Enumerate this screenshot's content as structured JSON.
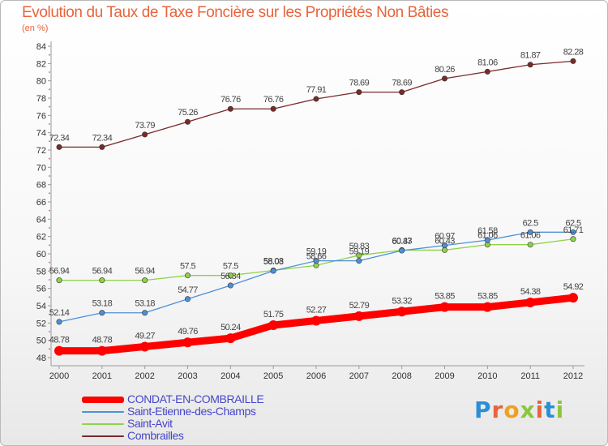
{
  "chart_data": {
    "type": "line",
    "title": "Evolution du Taux de Taxe Foncière sur les Propriétés Non Bâties",
    "subtitle": "(en %)",
    "xlabel": "",
    "ylabel": "",
    "x": [
      "2000",
      "2001",
      "2002",
      "2003",
      "2004",
      "2005",
      "2006",
      "2007",
      "2008",
      "2009",
      "2010",
      "2011",
      "2012"
    ],
    "ylim": [
      48,
      84
    ],
    "yticks": [
      48,
      50,
      52,
      54,
      56,
      58,
      60,
      62,
      64,
      66,
      68,
      70,
      72,
      74,
      76,
      78,
      80,
      82,
      84
    ],
    "grid": false,
    "legend_position": "bottom-left",
    "series": [
      {
        "name": "CONDAT-EN-COMBRAILLE",
        "color": "#ff0000",
        "values": [
          48.78,
          48.78,
          49.27,
          49.76,
          50.24,
          51.75,
          52.27,
          52.79,
          53.32,
          53.85,
          53.85,
          54.38,
          54.92
        ],
        "labels": [
          "48.78",
          "48.78",
          "49.27",
          "49.76",
          "50.24",
          "51.75",
          "52.27",
          "52.79",
          "53.32",
          "53.85",
          "53.85",
          "54.38",
          "54.92"
        ]
      },
      {
        "name": "Saint-Etienne-des-Champs",
        "color": "#4d90d8",
        "values": [
          52.14,
          53.18,
          53.18,
          54.77,
          56.34,
          58.03,
          59.19,
          59.19,
          60.37,
          60.97,
          61.58,
          62.5,
          62.5
        ],
        "labels": [
          "52.14",
          "53.18",
          "53.18",
          "54.77",
          "56.34",
          "58.03",
          "59.19",
          "59.19",
          "60.37",
          "60.97",
          "61.58",
          "62.5",
          "62.5"
        ]
      },
      {
        "name": "Saint-Avit",
        "color": "#8fd24a",
        "values": [
          56.94,
          56.94,
          56.94,
          57.5,
          57.5,
          58.08,
          58.66,
          59.83,
          60.43,
          60.43,
          61.06,
          61.06,
          61.71
        ],
        "labels": [
          "56.94",
          "56.94",
          "56.94",
          "57.5",
          "57.5",
          "58.08",
          "58.66",
          "59.83",
          "60.43",
          "60.43",
          "61.06",
          "61.06",
          "61.71"
        ]
      },
      {
        "name": "Combrailles",
        "color": "#7a2a2a",
        "values": [
          72.34,
          72.34,
          73.79,
          75.26,
          76.76,
          76.76,
          77.91,
          78.69,
          78.69,
          80.26,
          81.06,
          81.87,
          82.28
        ],
        "labels": [
          "72.34",
          "72.34",
          "73.79",
          "75.26",
          "76.76",
          "76.76",
          "77.91",
          "78.69",
          "78.69",
          "80.26",
          "81.06",
          "81.87",
          "82.28"
        ]
      }
    ]
  },
  "logo": {
    "letters": [
      "P",
      "r",
      "o",
      "x",
      "i",
      "t",
      "i"
    ]
  }
}
